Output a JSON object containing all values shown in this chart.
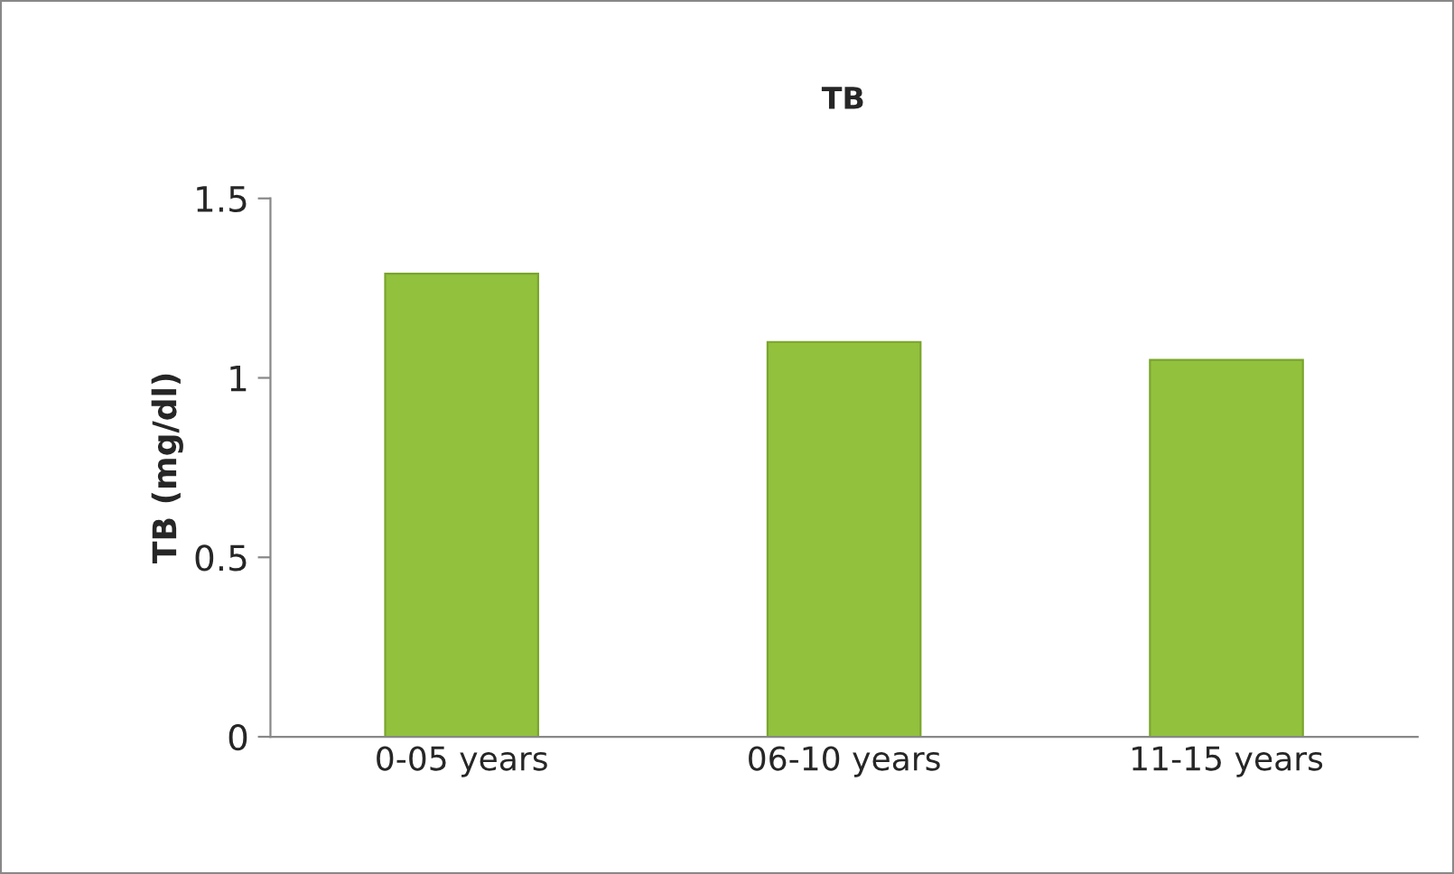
{
  "chart_data": {
    "type": "bar",
    "title": "TB",
    "ylabel": "TB (mg/dl)",
    "categories": [
      "0-05 years",
      "06-10 years",
      "11-15 years"
    ],
    "values": [
      1.29,
      1.1,
      1.05
    ],
    "color": "#92c13e",
    "ylim": [
      0,
      1.5
    ],
    "yticks": [
      0,
      0.5,
      1,
      1.5
    ],
    "grid": false,
    "legend": false
  }
}
